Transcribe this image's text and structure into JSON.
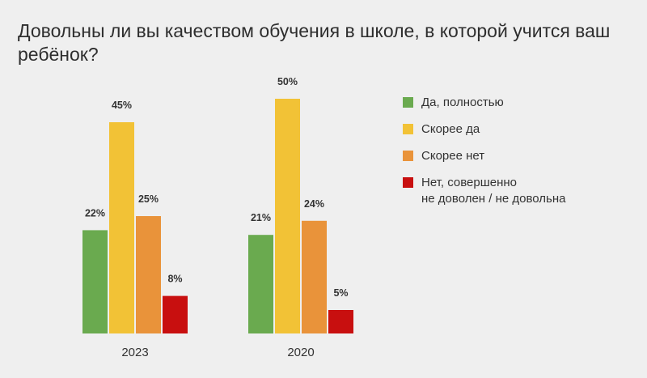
{
  "title": "Довольны ли вы качеством обучения в школе, в которой учится ваш ребёнок?",
  "chart_data": {
    "type": "bar",
    "categories": [
      "2023",
      "2020"
    ],
    "series": [
      {
        "name": "Да, полностью",
        "color": "#6aaa4f",
        "values": [
          22,
          21
        ]
      },
      {
        "name": "Скорее да",
        "color": "#f2c236",
        "values": [
          45,
          50
        ]
      },
      {
        "name": "Скорее нет",
        "color": "#e9933a",
        "values": [
          25,
          24
        ]
      },
      {
        "name": "Нет, совершенно\nне доволен / не довольна",
        "color": "#c80f0f",
        "values": [
          8,
          5
        ]
      }
    ],
    "value_suffix": "%",
    "ylim": [
      0,
      50
    ],
    "grid": false,
    "legend_position": "right"
  }
}
